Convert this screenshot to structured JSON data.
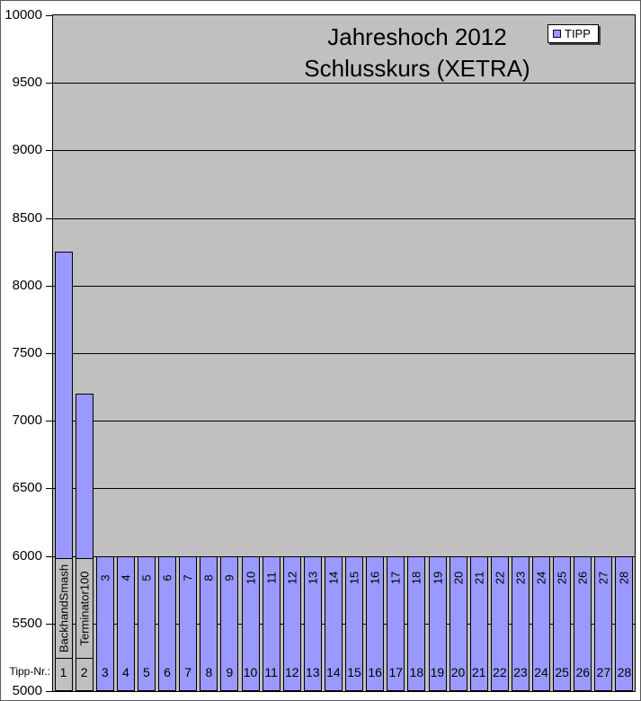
{
  "title": {
    "line1": "Jahreshoch 2012",
    "line2": "Schlusskurs (XETRA)"
  },
  "legend": {
    "label": "TIPP",
    "marker_color": "#9999ff"
  },
  "axis": {
    "tipp_nr_label": "Tipp-Nr.:"
  },
  "chart_data": {
    "type": "bar",
    "title": "Jahreshoch 2012 Schlusskurs (XETRA)",
    "series_name": "TIPP",
    "categories": [
      "BackhandSmash",
      "Terminator100",
      "3",
      "4",
      "5",
      "6",
      "7",
      "8",
      "9",
      "10",
      "11",
      "12",
      "13",
      "14",
      "15",
      "16",
      "17",
      "18",
      "19",
      "20",
      "21",
      "22",
      "23",
      "24",
      "25",
      "26",
      "27",
      "28"
    ],
    "tip_numbers": [
      "1",
      "2",
      "3",
      "4",
      "5",
      "6",
      "7",
      "8",
      "9",
      "10",
      "11",
      "12",
      "13",
      "14",
      "15",
      "16",
      "17",
      "18",
      "19",
      "20",
      "21",
      "22",
      "23",
      "24",
      "25",
      "26",
      "27",
      "28"
    ],
    "values": [
      8250,
      7200,
      6000,
      6000,
      6000,
      6000,
      6000,
      6000,
      6000,
      6000,
      6000,
      6000,
      6000,
      6000,
      6000,
      6000,
      6000,
      6000,
      6000,
      6000,
      6000,
      6000,
      6000,
      6000,
      6000,
      6000,
      6000,
      6000
    ],
    "named_label_count": 2,
    "ylim": [
      5000,
      10000
    ],
    "yticks": [
      10000,
      9500,
      9000,
      8500,
      8000,
      7500,
      7000,
      6500,
      6000,
      5500,
      5000
    ],
    "grid": true,
    "legend_position": "top-right",
    "bar_color": "#9999ff",
    "plot_bg": "#c0c0c0"
  }
}
